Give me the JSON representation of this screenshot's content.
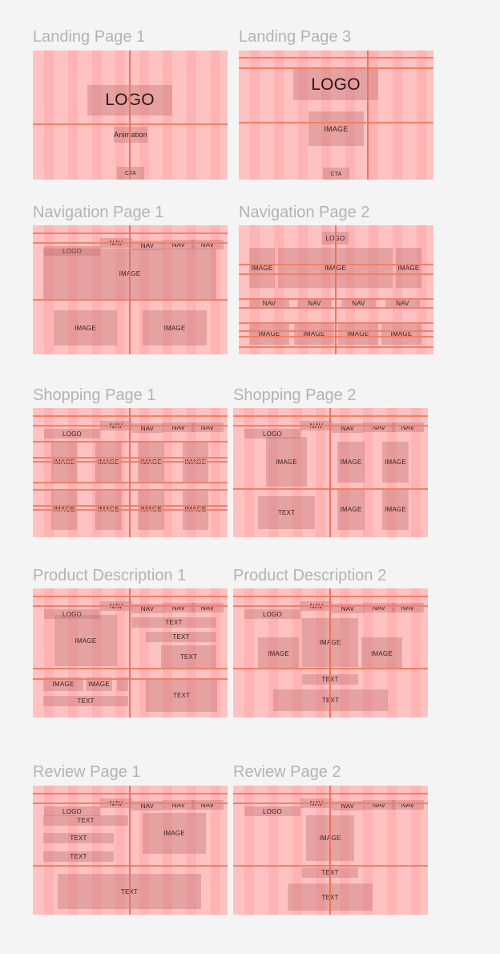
{
  "frames": [
    {
      "title": "Landing Page 1",
      "boxes": [
        {
          "label": "LOGO",
          "size": "xl"
        },
        {
          "label": "Animation",
          "size": "md"
        },
        {
          "label": "CTA",
          "size": "sm"
        }
      ]
    },
    {
      "title": "Landing Page 3",
      "boxes": [
        {
          "label": "LOGO",
          "size": "xl"
        },
        {
          "label": "IMAGE",
          "size": "md"
        },
        {
          "label": "CTA",
          "size": "sm"
        }
      ]
    },
    {
      "title": "Navigation Page 1",
      "boxes": [
        {
          "label": "LOGO"
        },
        {
          "label": "NAV"
        },
        {
          "label": "NAV"
        },
        {
          "label": "NAV"
        },
        {
          "label": "NAV"
        },
        {
          "label": "IMAGE"
        },
        {
          "label": "IMAGE"
        },
        {
          "label": "IMAGE"
        }
      ]
    },
    {
      "title": "Navigation Page 2",
      "boxes": [
        {
          "label": "LOGO"
        },
        {
          "label": "IMAGE"
        },
        {
          "label": "IMAGE"
        },
        {
          "label": "IMAGE"
        },
        {
          "label": "NAV"
        },
        {
          "label": "NAV"
        },
        {
          "label": "NAV"
        },
        {
          "label": "NAV"
        },
        {
          "label": "IMAGE"
        },
        {
          "label": "IMAGE"
        },
        {
          "label": "IMAGE"
        },
        {
          "label": "IMAGE"
        }
      ]
    },
    {
      "title": "Shopping Page 1",
      "boxes": [
        {
          "label": "LOGO"
        },
        {
          "label": "NAV"
        },
        {
          "label": "NAV"
        },
        {
          "label": "NAV"
        },
        {
          "label": "NAV"
        },
        {
          "label": "IMAGE"
        },
        {
          "label": "IMAGE"
        },
        {
          "label": "IMAGE"
        },
        {
          "label": "IMAGE"
        },
        {
          "label": "IMAGE"
        },
        {
          "label": "IMAGE"
        },
        {
          "label": "IMAGE"
        },
        {
          "label": "IMAGE"
        }
      ]
    },
    {
      "title": "Shopping Page 2",
      "boxes": [
        {
          "label": "LOGO"
        },
        {
          "label": "NAV"
        },
        {
          "label": "NAV"
        },
        {
          "label": "NAV"
        },
        {
          "label": "NAV"
        },
        {
          "label": "IMAGE"
        },
        {
          "label": "IMAGE"
        },
        {
          "label": "IMAGE"
        },
        {
          "label": "TEXT"
        },
        {
          "label": "IMAGE"
        },
        {
          "label": "IMAGE"
        }
      ]
    },
    {
      "title": "Product Description 1",
      "boxes": [
        {
          "label": "LOGO"
        },
        {
          "label": "NAV"
        },
        {
          "label": "NAV"
        },
        {
          "label": "NAV"
        },
        {
          "label": "NAV"
        },
        {
          "label": "IMAGE"
        },
        {
          "label": "TEXT"
        },
        {
          "label": "TEXT"
        },
        {
          "label": "TEXT"
        },
        {
          "label": "IMAGE"
        },
        {
          "label": "IMAGE"
        },
        {
          "label": ""
        },
        {
          "label": "TEXT"
        },
        {
          "label": "TEXT"
        }
      ]
    },
    {
      "title": "Product Description 2",
      "boxes": [
        {
          "label": "LOGO"
        },
        {
          "label": "NAV"
        },
        {
          "label": "NAV"
        },
        {
          "label": "NAV"
        },
        {
          "label": "NAV"
        },
        {
          "label": "IMAGE"
        },
        {
          "label": "IMAGE"
        },
        {
          "label": "IMAGE"
        },
        {
          "label": "TEXT"
        },
        {
          "label": "TEXT"
        }
      ]
    },
    {
      "title": "Review Page 1",
      "boxes": [
        {
          "label": "LOGO"
        },
        {
          "label": "NAV"
        },
        {
          "label": "NAV"
        },
        {
          "label": "NAV"
        },
        {
          "label": "NAV"
        },
        {
          "label": "TEXT"
        },
        {
          "label": "TEXT"
        },
        {
          "label": "TEXT"
        },
        {
          "label": "IMAGE"
        },
        {
          "label": "TEXT"
        }
      ]
    },
    {
      "title": "Review Page 2",
      "boxes": [
        {
          "label": "LOGO"
        },
        {
          "label": "NAV"
        },
        {
          "label": "NAV"
        },
        {
          "label": "NAV"
        },
        {
          "label": "NAV"
        },
        {
          "label": "IMAGE"
        },
        {
          "label": "TEXT"
        },
        {
          "label": "TEXT"
        }
      ]
    }
  ]
}
